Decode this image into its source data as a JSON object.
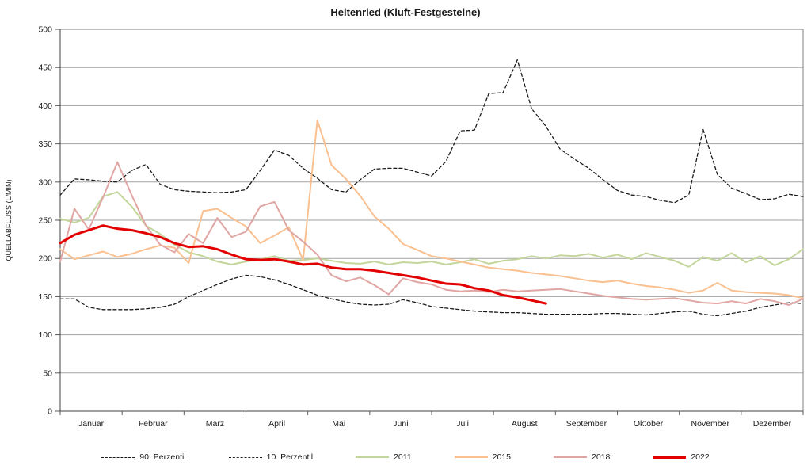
{
  "chart_data": {
    "type": "line",
    "title": "Heitenried (Kluft-Festgesteine)",
    "ylabel": "QUELLABFLUSS (L/MIN)",
    "xlabel": "",
    "ylim": [
      0,
      500
    ],
    "ytick_step": 50,
    "grid": "horizontal",
    "legend_position": "bottom",
    "x_points": 53,
    "x_unit": "weekly samples, January through December",
    "categories": [
      "Januar",
      "Februar",
      "März",
      "April",
      "Mai",
      "Juni",
      "Juli",
      "August",
      "September",
      "Oktober",
      "November",
      "Dezember"
    ],
    "series": [
      {
        "name": "90. Perzentil",
        "color": "#1a1a1a",
        "style": "dashed",
        "width": 1.3,
        "values": [
          283,
          304,
          303,
          301,
          300,
          315,
          323,
          297,
          290,
          288,
          287,
          286,
          287,
          290,
          315,
          342,
          335,
          318,
          305,
          290,
          287,
          303,
          317,
          318,
          318,
          313,
          308,
          327,
          367,
          368,
          416,
          417,
          460,
          396,
          373,
          343,
          330,
          318,
          303,
          289,
          283,
          281,
          276,
          273,
          283,
          369,
          310,
          292,
          285,
          277,
          278,
          284,
          281
        ]
      },
      {
        "name": "10. Perzentil",
        "color": "#1a1a1a",
        "style": "dashed",
        "width": 1.3,
        "values": [
          147,
          147,
          136,
          133,
          133,
          133,
          134,
          136,
          140,
          150,
          158,
          166,
          173,
          178,
          176,
          172,
          166,
          159,
          152,
          147,
          143,
          140,
          139,
          140,
          146,
          142,
          137,
          135,
          133,
          131,
          130,
          129,
          129,
          128,
          127,
          127,
          127,
          127,
          128,
          128,
          127,
          126,
          128,
          130,
          131,
          127,
          125,
          128,
          131,
          136,
          139,
          142,
          141
        ]
      },
      {
        "name": "2011",
        "color": "#c3d69b",
        "style": "solid",
        "width": 2,
        "values": [
          252,
          247,
          253,
          281,
          287,
          268,
          243,
          232,
          218,
          208,
          203,
          196,
          192,
          196,
          199,
          203,
          197,
          198,
          200,
          197,
          194,
          193,
          196,
          192,
          195,
          194,
          196,
          192,
          195,
          199,
          193,
          197,
          199,
          203,
          200,
          204,
          203,
          206,
          201,
          205,
          199,
          207,
          202,
          197,
          189,
          202,
          197,
          207,
          195,
          203,
          191,
          199,
          212
        ]
      },
      {
        "name": "2015",
        "color": "#fac090",
        "style": "solid",
        "width": 2,
        "values": [
          212,
          199,
          204,
          209,
          202,
          206,
          212,
          217,
          214,
          194,
          262,
          265,
          253,
          242,
          220,
          230,
          241,
          198,
          381,
          322,
          304,
          282,
          255,
          239,
          219,
          211,
          203,
          200,
          196,
          192,
          188,
          186,
          184,
          181,
          179,
          177,
          174,
          171,
          169,
          171,
          167,
          164,
          162,
          159,
          155,
          158,
          168,
          158,
          156,
          155,
          154,
          152,
          148
        ]
      },
      {
        "name": "2018",
        "color": "#e0a6a4",
        "style": "solid",
        "width": 2,
        "values": [
          196,
          265,
          238,
          280,
          326,
          283,
          243,
          218,
          208,
          232,
          220,
          253,
          228,
          235,
          268,
          274,
          237,
          222,
          205,
          178,
          170,
          175,
          165,
          153,
          174,
          169,
          166,
          159,
          157,
          158,
          156,
          159,
          157,
          158,
          159,
          160,
          157,
          154,
          151,
          149,
          147,
          146,
          147,
          148,
          145,
          142,
          141,
          144,
          141,
          147,
          144,
          139,
          147
        ]
      },
      {
        "name": "2022",
        "color": "#e30000",
        "style": "solid",
        "width": 3,
        "values": [
          220,
          231,
          237,
          243,
          239,
          237,
          233,
          228,
          220,
          215,
          216,
          212,
          205,
          199,
          198,
          199,
          196,
          192,
          193,
          188,
          186,
          186,
          184,
          181,
          178,
          175,
          171,
          167,
          166,
          161,
          158,
          152,
          149,
          145,
          141
        ]
      }
    ]
  }
}
